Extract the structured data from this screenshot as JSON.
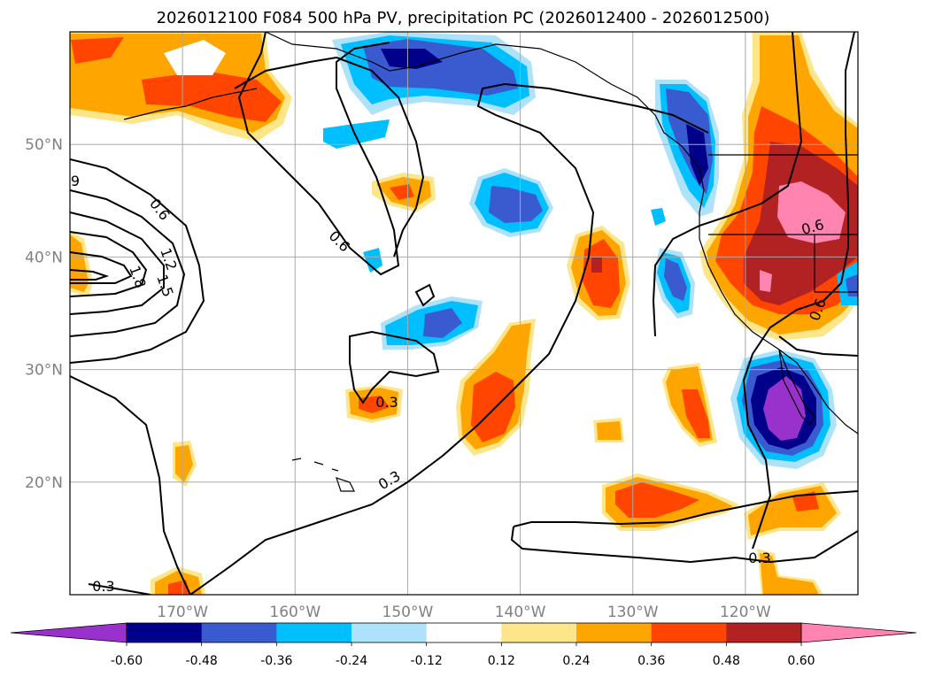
{
  "chart_data": {
    "type": "contour-map",
    "title": "2026012100 F084 500 hPa PV, precipitation PC (2026012400 - 2026012500)",
    "x_ticks": [
      "170°W",
      "160°W",
      "150°W",
      "140°W",
      "130°W",
      "120°W"
    ],
    "y_ticks": [
      "20°N",
      "30°N",
      "40°N",
      "50°N"
    ],
    "lon_range": [
      -180,
      -110
    ],
    "lat_range": [
      10,
      60
    ],
    "grid": true,
    "colorbar": {
      "levels": [
        "-0.60",
        "-0.48",
        "-0.36",
        "-0.24",
        "-0.12",
        "0.12",
        "0.24",
        "0.36",
        "0.48",
        "0.60"
      ],
      "colors": [
        "#9932cc",
        "#00008b",
        "#3a5ad0",
        "#00bfff",
        "#ade2fa",
        "#ffffff",
        "#fde68a",
        "#ffa500",
        "#ff4500",
        "#b22222",
        "#ff85b0"
      ],
      "extend": "both"
    },
    "contour_labels": [
      "0.6",
      "0.6",
      "1.2",
      "1.5",
      "1.8",
      "0.6",
      "0.6",
      "0.3",
      "0.3",
      "0.3",
      "0.3",
      "0.6",
      "9"
    ]
  }
}
